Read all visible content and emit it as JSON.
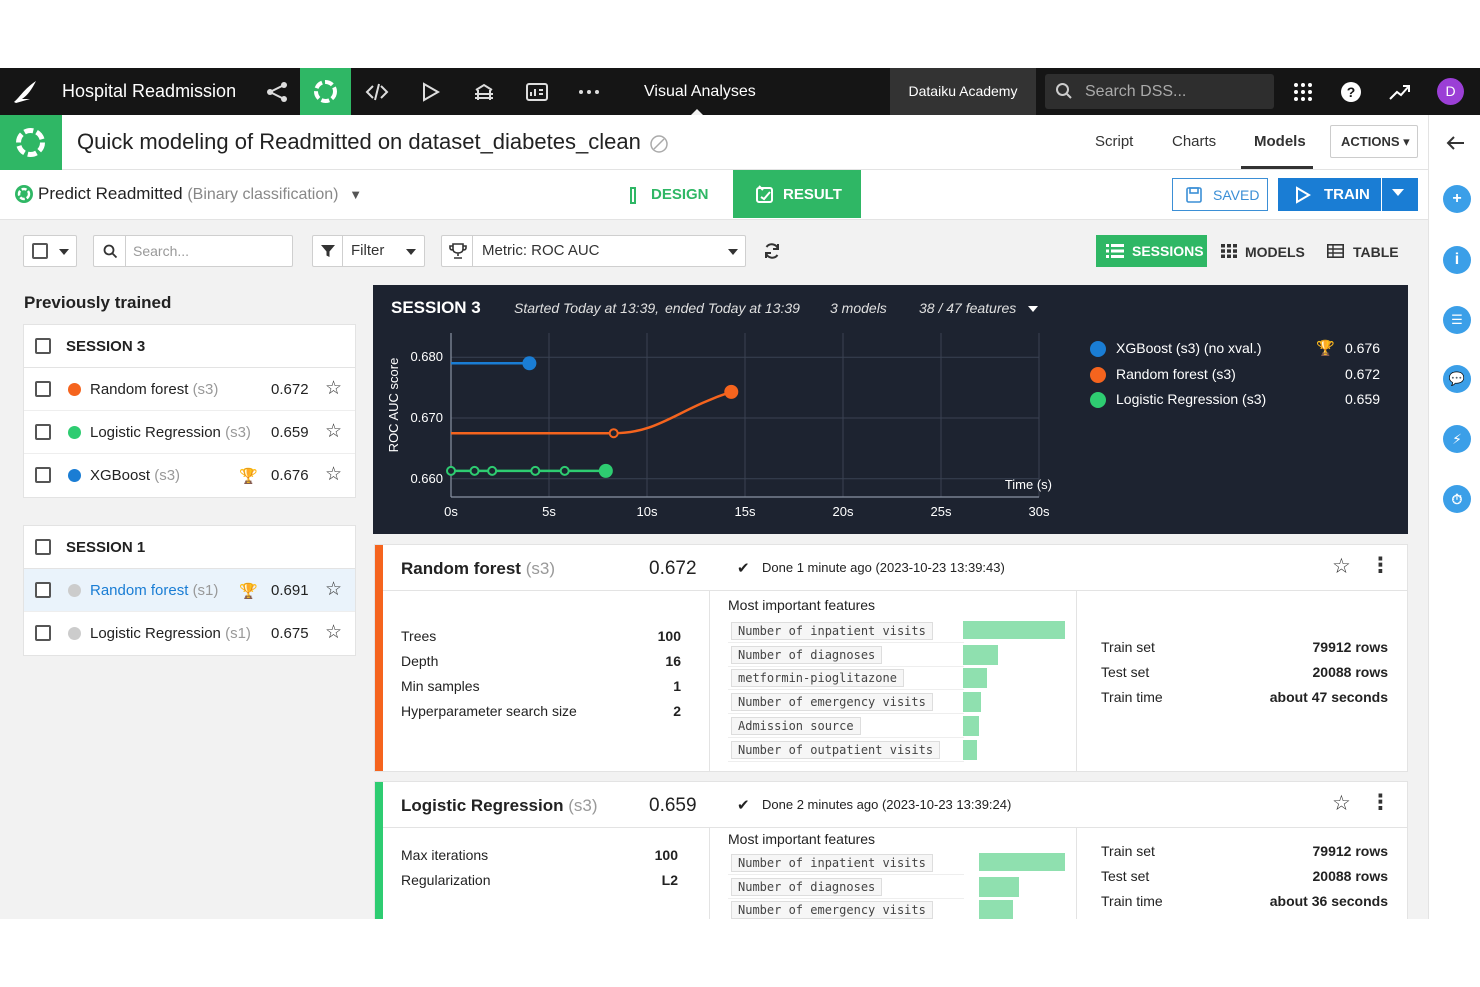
{
  "topnav": {
    "project": "Hospital Readmission",
    "section": "Visual Analyses",
    "academy": "Dataiku Academy",
    "search_placeholder": "Search DSS...",
    "avatar": "D"
  },
  "header": {
    "title": "Quick modeling of Readmitted on dataset_diabetes_clean",
    "links": [
      "Script",
      "Charts",
      "Models"
    ],
    "actions": "ACTIONS ▾"
  },
  "row2": {
    "prediction": "Predict Readmitted",
    "prediction_type": "(Binary classification)",
    "design": "DESIGN",
    "result": "RESULT",
    "saved": "SAVED",
    "train": "TRAIN"
  },
  "toolbar": {
    "search_placeholder": "Search...",
    "filter": "Filter",
    "metric": "Metric: ROC AUC",
    "sessions": "SESSIONS",
    "models": "MODELS",
    "table": "TABLE"
  },
  "left": {
    "title": "Previously trained",
    "sessions": [
      {
        "label": "SESSION 3",
        "models": [
          {
            "name": "Random forest",
            "tag": "(s3)",
            "score": "0.672",
            "color": "#f5641e",
            "best": false
          },
          {
            "name": "Logistic Regression",
            "tag": "(s3)",
            "score": "0.659",
            "color": "#2ecc71",
            "best": false
          },
          {
            "name": "XGBoost",
            "tag": "(s3)",
            "score": "0.676",
            "color": "#1a7dd4",
            "best": true
          }
        ]
      },
      {
        "label": "SESSION 1",
        "models": [
          {
            "name": "Random forest",
            "tag": "(s1)",
            "score": "0.691",
            "color": "#cccccc",
            "best": true
          },
          {
            "name": "Logistic Regression",
            "tag": "(s1)",
            "score": "0.675",
            "color": "#cccccc",
            "best": false
          }
        ]
      }
    ]
  },
  "session_panel": {
    "label": "SESSION 3",
    "started": "Started Today at 13:39,",
    "ended": "ended Today at 13:39",
    "models_count": "3 models",
    "features": "38 / 47 features"
  },
  "chart_data": {
    "type": "line",
    "xlabel": "Time (s)",
    "ylabel": "ROC AUC score",
    "xlim": [
      0,
      30
    ],
    "ylim": [
      0.657,
      0.683
    ],
    "x_ticks": [
      "0s",
      "5s",
      "10s",
      "15s",
      "20s",
      "25s",
      "30s"
    ],
    "y_ticks": [
      "0.660",
      "0.670",
      "0.680"
    ],
    "legend_position": "right",
    "series": [
      {
        "name": "XGBoost (s3) (no xval.)",
        "score": "0.676",
        "best": true,
        "color": "#1a7dd4",
        "x": [
          0,
          4
        ],
        "y": [
          0.679,
          0.679
        ]
      },
      {
        "name": "Random forest (s3)",
        "score": "0.672",
        "best": false,
        "color": "#f5641e",
        "x": [
          0,
          8.3,
          14.3
        ],
        "y": [
          0.6675,
          0.6675,
          0.6743
        ]
      },
      {
        "name": "Logistic Regression (s3)",
        "score": "0.659",
        "best": false,
        "color": "#2ecc71",
        "x": [
          0,
          1.2,
          2.1,
          4.3,
          5.8,
          7.9
        ],
        "y": [
          0.6613,
          0.6613,
          0.6613,
          0.6613,
          0.6613,
          0.6613
        ]
      }
    ]
  },
  "cards": [
    {
      "name": "Random forest",
      "tag": "(s3)",
      "score": "0.672",
      "color": "#f5641e",
      "done": "Done 1 minute ago (2023-10-23 13:39:43)",
      "params": [
        {
          "label": "Trees",
          "value": "100"
        },
        {
          "label": "Depth",
          "value": "16"
        },
        {
          "label": "Min samples",
          "value": "1"
        },
        {
          "label": "Hyperparameter search size",
          "value": "2"
        }
      ],
      "features_title": "Most important features",
      "features": [
        {
          "name": "Number of inpatient visits",
          "importance": 1.0
        },
        {
          "name": "Number of diagnoses",
          "importance": 0.34
        },
        {
          "name": "metformin-pioglitazone",
          "importance": 0.24
        },
        {
          "name": "Number of emergency visits",
          "importance": 0.18
        },
        {
          "name": "Admission source",
          "importance": 0.16
        },
        {
          "name": "Number of outpatient visits",
          "importance": 0.14
        }
      ],
      "stats": [
        {
          "label": "Train set",
          "value": "79912 rows"
        },
        {
          "label": "Test set",
          "value": "20088 rows"
        },
        {
          "label": "Train time",
          "value": "about 47 seconds"
        }
      ]
    },
    {
      "name": "Logistic Regression",
      "tag": "(s3)",
      "score": "0.659",
      "color": "#2ecc71",
      "done": "Done 2 minutes ago (2023-10-23 13:39:24)",
      "params": [
        {
          "label": "Max iterations",
          "value": "100"
        },
        {
          "label": "Regularization",
          "value": "L2"
        }
      ],
      "features_title": "Most important features",
      "features": [
        {
          "name": "Number of inpatient visits",
          "importance": 1.0
        },
        {
          "name": "Number of diagnoses",
          "importance": 0.46
        },
        {
          "name": "Number of emergency visits",
          "importance": 0.39
        }
      ],
      "stats": [
        {
          "label": "Train set",
          "value": "79912 rows"
        },
        {
          "label": "Test set",
          "value": "20088 rows"
        },
        {
          "label": "Train time",
          "value": "about 36 seconds"
        }
      ]
    }
  ]
}
